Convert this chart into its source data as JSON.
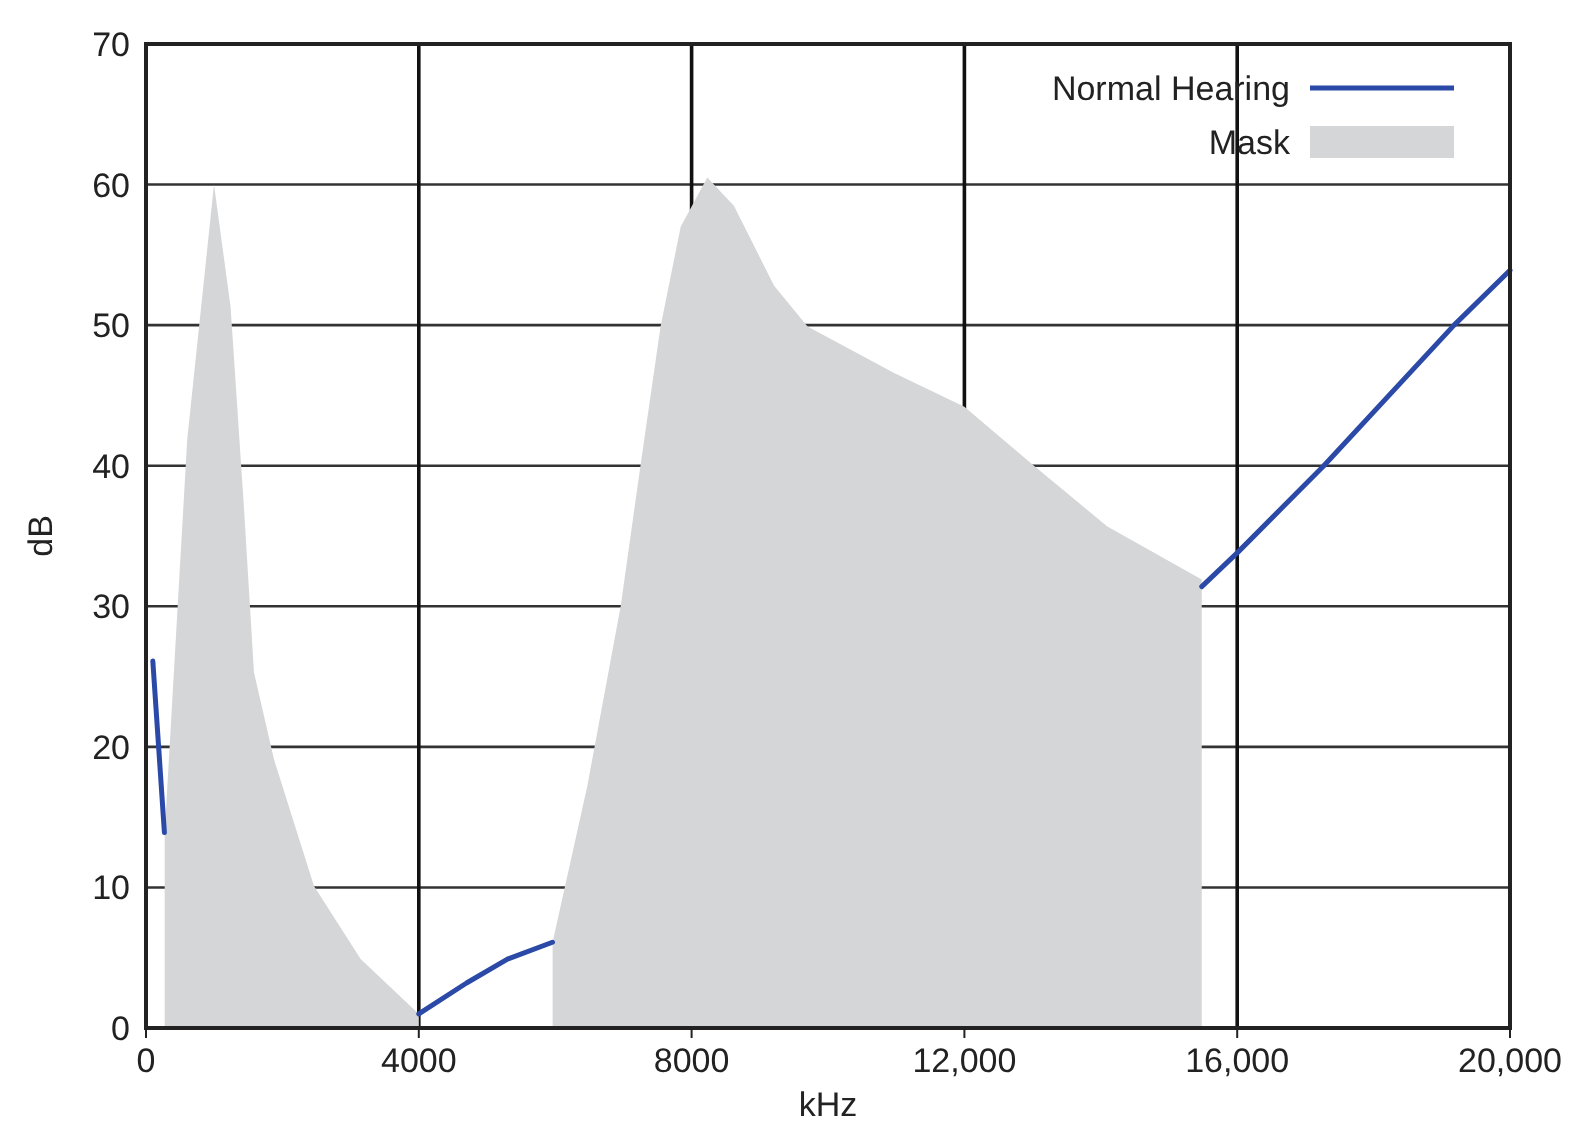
{
  "chart_data": {
    "type": "line",
    "xlabel": "kHz",
    "ylabel": "dB",
    "xlim": [
      0,
      20000
    ],
    "xticks": [
      0,
      4000,
      8000,
      {
        "value": 12000,
        "label": "12,000"
      },
      {
        "value": 16000,
        "label": "16,000"
      },
      {
        "value": 20000,
        "label": "20,000"
      }
    ],
    "ylim": [
      0,
      70
    ],
    "yticks": [
      0,
      10,
      20,
      30,
      40,
      50,
      60,
      70
    ],
    "grid": true,
    "legend": "top right",
    "series": [
      {
        "name": "Normal Hearing",
        "color": "#2b4aa8",
        "x": [
          100,
          270,
          2000,
          4000,
          4700,
          5300,
          5960,
          10000,
          15480,
          16000,
          17270,
          19180,
          20000
        ],
        "values": [
          26.1,
          13.9,
          null,
          1.0,
          3.2,
          4.9,
          6.1,
          null,
          31.4,
          33.8,
          40,
          50,
          53.9
        ]
      },
      {
        "name": "Mask",
        "type": "area",
        "color": "#d5d6d8",
        "x": [
          274,
          274,
          605,
          997,
          1240,
          1435,
          1583,
          1877,
          2463,
          3147,
          4000,
          5000,
          5962,
          5962,
          6470,
          6960,
          7250,
          7545,
          7840,
          8230,
          8620,
          9210,
          9700,
          10970,
          12000,
          13020,
          14090,
          15480,
          15480
        ],
        "values": [
          0,
          13.9,
          41.9,
          60.0,
          51.3,
          37.1,
          25.3,
          19.1,
          10.1,
          4.9,
          1.0,
          null,
          0,
          6.1,
          17.2,
          30.0,
          40.0,
          49.9,
          57.0,
          60.5,
          58.5,
          52.8,
          49.9,
          46.6,
          44.2,
          40.0,
          35.7,
          31.9,
          0
        ]
      }
    ]
  }
}
